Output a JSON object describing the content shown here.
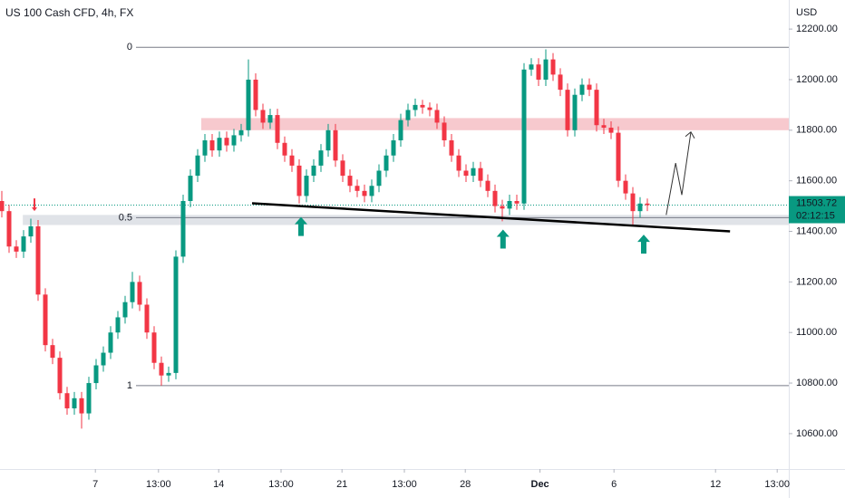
{
  "chart_data": {
    "type": "candlestick",
    "title": "US 100 Cash CFD, 4h, FX",
    "currency": "USD",
    "up_color": "#089981",
    "down_color": "#f23645",
    "open": [
      11520,
      11480,
      11340,
      11320,
      11380,
      11420,
      11150,
      10950,
      10900,
      10760,
      10700,
      10740,
      10680,
      10800,
      10870,
      10920,
      11000,
      11060,
      11120,
      11200,
      11110,
      11000,
      10880,
      10830,
      10840,
      11300,
      11520,
      11620,
      11700,
      11760,
      11720,
      11770,
      11740,
      11780,
      11800,
      12000,
      11880,
      11830,
      11860,
      11750,
      11700,
      11660,
      11540,
      11620,
      11660,
      11720,
      11800,
      11680,
      11620,
      11580,
      11560,
      11540,
      11580,
      11640,
      11700,
      11760,
      11840,
      11880,
      11900,
      11890,
      11880,
      11830,
      11760,
      11700,
      11640,
      11620,
      11650,
      11600,
      11560,
      11500,
      11490,
      11520,
      11510,
      12040,
      12060,
      12000,
      12080,
      12020,
      11960,
      11800,
      11940,
      11980,
      11960,
      11820,
      11810,
      11790,
      11600,
      11550,
      11480,
      11510
    ],
    "high": [
      11560,
      11505,
      11365,
      11405,
      11450,
      11445,
      11175,
      10975,
      10925,
      10785,
      10765,
      10765,
      10825,
      10895,
      10945,
      11025,
      11085,
      11145,
      11240,
      11225,
      11135,
      11025,
      10905,
      10865,
      11325,
      11545,
      11645,
      11725,
      11785,
      11785,
      11795,
      11795,
      11805,
      11825,
      12080,
      12025,
      11905,
      11885,
      11885,
      11775,
      11725,
      11685,
      11645,
      11685,
      11745,
      11825,
      11825,
      11705,
      11645,
      11605,
      11585,
      11605,
      11665,
      11725,
      11785,
      11865,
      11905,
      11925,
      11920,
      11910,
      11905,
      11855,
      11785,
      11725,
      11665,
      11675,
      11675,
      11625,
      11585,
      11525,
      11545,
      11545,
      12065,
      12085,
      12085,
      12120,
      12105,
      12045,
      11985,
      11965,
      12005,
      12005,
      11985,
      11845,
      11835,
      11815,
      11625,
      11575,
      11535,
      11530
    ],
    "low": [
      11455,
      11315,
      11295,
      11295,
      11355,
      11125,
      10925,
      10875,
      10735,
      10675,
      10675,
      10620,
      10655,
      10775,
      10845,
      10895,
      10975,
      11035,
      11095,
      11085,
      10975,
      10855,
      10790,
      10805,
      10815,
      11275,
      11495,
      11595,
      11675,
      11695,
      11695,
      11715,
      11715,
      11755,
      11775,
      11855,
      11805,
      11805,
      11725,
      11675,
      11635,
      11510,
      11515,
      11595,
      11635,
      11695,
      11655,
      11595,
      11555,
      11535,
      11515,
      11515,
      11555,
      11615,
      11675,
      11735,
      11815,
      11855,
      11865,
      11855,
      11805,
      11735,
      11675,
      11615,
      11595,
      11595,
      11575,
      11535,
      11475,
      11440,
      11465,
      11485,
      11485,
      12015,
      11975,
      11975,
      11995,
      11935,
      11775,
      11775,
      11915,
      11935,
      11795,
      11785,
      11765,
      11575,
      11525,
      11420,
      11455,
      11480
    ],
    "close": [
      11480,
      11340,
      11320,
      11380,
      11420,
      11150,
      10950,
      10900,
      10760,
      10700,
      10740,
      10680,
      10800,
      10870,
      10920,
      11000,
      11060,
      11120,
      11200,
      11110,
      11000,
      10880,
      10830,
      10840,
      11300,
      11520,
      11620,
      11700,
      11760,
      11720,
      11770,
      11740,
      11780,
      11800,
      12000,
      11880,
      11830,
      11860,
      11750,
      11700,
      11660,
      11540,
      11620,
      11660,
      11720,
      11800,
      11680,
      11620,
      11580,
      11560,
      11540,
      11580,
      11640,
      11700,
      11760,
      11840,
      11880,
      11900,
      11890,
      11880,
      11830,
      11760,
      11700,
      11640,
      11620,
      11650,
      11600,
      11560,
      11500,
      11490,
      11520,
      11510,
      12040,
      12060,
      12000,
      12080,
      12020,
      11960,
      11800,
      11940,
      11980,
      11960,
      11820,
      11810,
      11790,
      11600,
      11550,
      11480,
      11510,
      11503.72
    ],
    "xlim": [
      -0.25,
      108.5
    ],
    "xticks": [
      {
        "value": 12.9,
        "label": "7"
      },
      {
        "value": 21.6,
        "label": "13:00"
      },
      {
        "value": 29.9,
        "label": "14"
      },
      {
        "value": 38.5,
        "label": "13:00"
      },
      {
        "value": 46.9,
        "label": "21"
      },
      {
        "value": 55.5,
        "label": "13:00"
      },
      {
        "value": 63.9,
        "label": "28"
      },
      {
        "value": 74.2,
        "label": "Dec"
      },
      {
        "value": 84.4,
        "label": "6"
      },
      {
        "value": 98.4,
        "label": "12"
      },
      {
        "value": 106.9,
        "label": "13:00"
      }
    ],
    "ylim": [
      10460,
      12315
    ],
    "yticks": [
      {
        "value": 10600,
        "label": "10600.00"
      },
      {
        "value": 10800,
        "label": "10800.00"
      },
      {
        "value": 11000,
        "label": "11000.00"
      },
      {
        "value": 11200,
        "label": "11200.00"
      },
      {
        "value": 11400,
        "label": "11400.00"
      },
      {
        "value": 11600,
        "label": "11600.00"
      },
      {
        "value": 11800,
        "label": "11800.00"
      },
      {
        "value": 12000,
        "label": "12000.00"
      },
      {
        "value": 12200,
        "label": "12200.00"
      }
    ],
    "last_price": {
      "value": 11503.72,
      "countdown": "02:12:15",
      "color": "#089981"
    },
    "fib": {
      "levels": [
        0,
        0.5,
        1
      ],
      "prices": [
        12128,
        11454,
        10790
      ],
      "starts": [
        18.5,
        18.5,
        18.5
      ]
    },
    "zones": [
      {
        "low": 11800,
        "high": 11848,
        "start": 27.5,
        "color": "#f7c9ce"
      },
      {
        "low": 11425,
        "high": 11465,
        "start": 2.9,
        "color": "#e0e3e8"
      }
    ],
    "trendline": {
      "x": [
        34.5,
        100.4
      ],
      "y": [
        11511,
        11400
      ]
    },
    "projection": {
      "x": [
        91.6,
        92.9,
        93.75,
        95
      ],
      "y": [
        11465,
        11670,
        11544,
        11793
      ]
    },
    "up_arrows": {
      "x": [
        41.25,
        69.1,
        88.5
      ],
      "y": [
        11500,
        11450,
        11430
      ],
      "color": "#089981"
    },
    "down_arrow": {
      "x": 4.5,
      "y": 11480,
      "color": "#f23645"
    }
  }
}
